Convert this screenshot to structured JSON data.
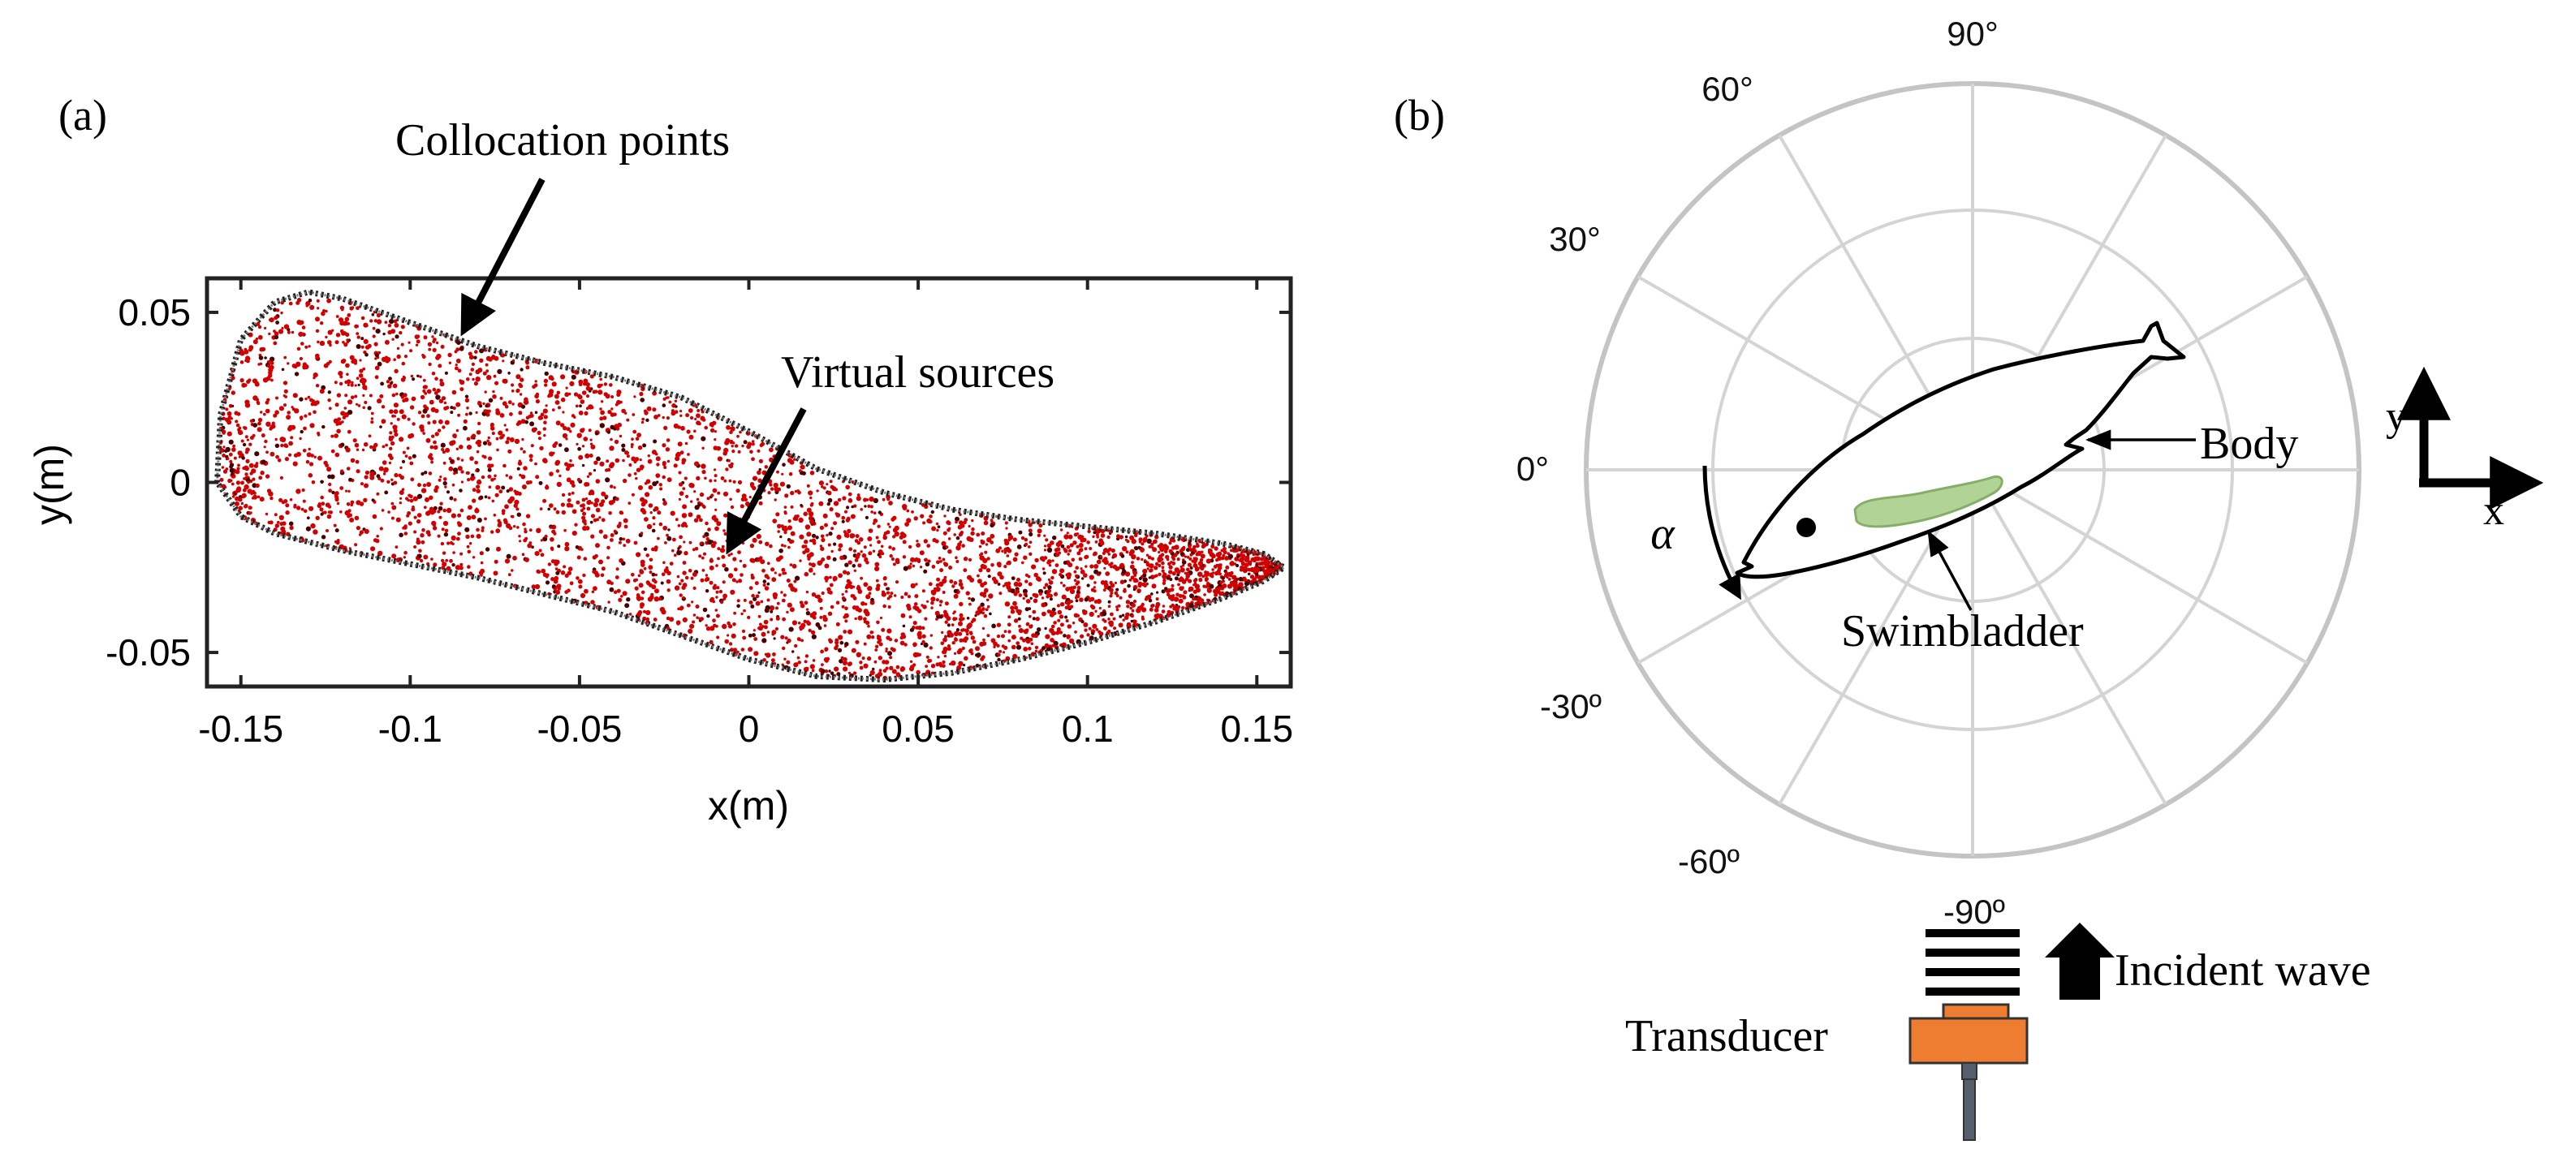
{
  "panel_a": {
    "label": "(a)",
    "collocation_label": "Collocation points",
    "virtual_label": "Virtual sources",
    "xlabel": "x(m)",
    "ylabel": "y(m)",
    "xticks": [
      {
        "value": -0.15,
        "label": "-0.15"
      },
      {
        "value": -0.1,
        "label": "-0.1"
      },
      {
        "value": -0.05,
        "label": "-0.05"
      },
      {
        "value": 0,
        "label": "0"
      },
      {
        "value": 0.05,
        "label": "0.05"
      },
      {
        "value": 0.1,
        "label": "0.1"
      },
      {
        "value": 0.15,
        "label": "0.15"
      }
    ],
    "yticks": [
      {
        "value": -0.05,
        "label": "-0.05"
      },
      {
        "value": 0,
        "label": "0"
      },
      {
        "value": 0.05,
        "label": "0.05"
      }
    ],
    "xlim": [
      -0.16,
      0.16
    ],
    "ylim": [
      -0.06,
      0.06
    ],
    "outline_upper": [
      [
        -0.157,
        0.0
      ],
      [
        -0.156,
        0.02
      ],
      [
        -0.15,
        0.042
      ],
      [
        -0.14,
        0.053
      ],
      [
        -0.13,
        0.056
      ],
      [
        -0.12,
        0.054
      ],
      [
        -0.1,
        0.047
      ],
      [
        -0.08,
        0.04
      ],
      [
        -0.06,
        0.035
      ],
      [
        -0.04,
        0.031
      ],
      [
        -0.02,
        0.025
      ],
      [
        0.0,
        0.015
      ],
      [
        0.02,
        0.004
      ],
      [
        0.04,
        -0.003
      ],
      [
        0.06,
        -0.008
      ],
      [
        0.08,
        -0.011
      ],
      [
        0.1,
        -0.013
      ],
      [
        0.12,
        -0.015
      ],
      [
        0.14,
        -0.018
      ],
      [
        0.152,
        -0.021
      ],
      [
        0.158,
        -0.025
      ]
    ],
    "outline_lower": [
      [
        -0.157,
        0.0
      ],
      [
        -0.15,
        -0.01
      ],
      [
        -0.14,
        -0.015
      ],
      [
        -0.12,
        -0.02
      ],
      [
        -0.1,
        -0.024
      ],
      [
        -0.08,
        -0.028
      ],
      [
        -0.06,
        -0.033
      ],
      [
        -0.04,
        -0.038
      ],
      [
        -0.02,
        -0.045
      ],
      [
        0.0,
        -0.052
      ],
      [
        0.02,
        -0.057
      ],
      [
        0.04,
        -0.058
      ],
      [
        0.06,
        -0.056
      ],
      [
        0.08,
        -0.052
      ],
      [
        0.1,
        -0.047
      ],
      [
        0.12,
        -0.041
      ],
      [
        0.14,
        -0.034
      ],
      [
        0.152,
        -0.029
      ],
      [
        0.158,
        -0.025
      ]
    ],
    "colors": {
      "virtual": "#d20000",
      "collocation": "#222222"
    }
  },
  "panel_b": {
    "label": "(b)",
    "angle_labels": [
      {
        "angle": 90,
        "text": "90°"
      },
      {
        "angle": 60,
        "text": "60°"
      },
      {
        "angle": 30,
        "text": "30°"
      },
      {
        "angle": 0,
        "text": "0°"
      },
      {
        "angle": -30,
        "text": "-30º"
      },
      {
        "angle": -60,
        "text": "-60º"
      },
      {
        "angle": -90,
        "text": "-90º"
      }
    ],
    "alpha_label": "α",
    "body_label": "Body",
    "swimbladder_label": "Swimbladder",
    "axis_x_label": "x",
    "axis_y_label": "y",
    "incident_label": "Incident wave",
    "transducer_label": "Transducer",
    "colors": {
      "grid": "#d4d4d4",
      "outer": "#c4c4c4",
      "swimbladder": "#a9cf8a",
      "swimbladder_stroke": "#7aa55a",
      "transducer": "#ef7d31",
      "cable": "#555e6b"
    }
  }
}
